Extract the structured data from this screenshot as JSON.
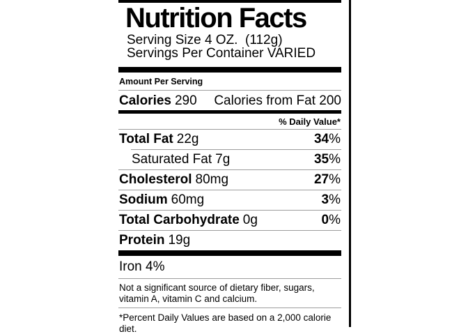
{
  "label": {
    "title": "Nutrition Facts",
    "serving_size": "Serving Size 4 OZ.  (112g)",
    "servings_per_container": "Servings Per Container VARIED",
    "amount_per_serving": "Amount Per Serving",
    "calories_label": "Calories",
    "calories_value": "290",
    "calories_from_fat": "Calories from Fat 200",
    "daily_value_heading": "% Daily Value*",
    "percent_sign": "%",
    "rows": [
      {
        "name": "Total Fat",
        "amount": "22g",
        "dv": "34"
      },
      {
        "name": "Saturated Fat",
        "amount": "7g",
        "dv": "35"
      },
      {
        "name": "Cholesterol",
        "amount": "80mg",
        "dv": "27"
      },
      {
        "name": "Sodium",
        "amount": "60mg",
        "dv": "3"
      },
      {
        "name": "Total Carbohydrate",
        "amount": "0g",
        "dv": "0"
      },
      {
        "name": "Protein",
        "amount": "19g",
        "dv": null
      }
    ],
    "iron_text": "Iron 4%",
    "footnote_insignificant": "Not a significant source of dietary fiber, sugars, vitamin A, vitamin C and calcium.",
    "footnote_daily_value": "*Percent Daily Values are based on a 2,000 calorie diet."
  },
  "colors": {
    "text": "#000000",
    "bar_black": "#000000",
    "rule_gray": "#9c9c9c",
    "background": "#ffffff"
  }
}
